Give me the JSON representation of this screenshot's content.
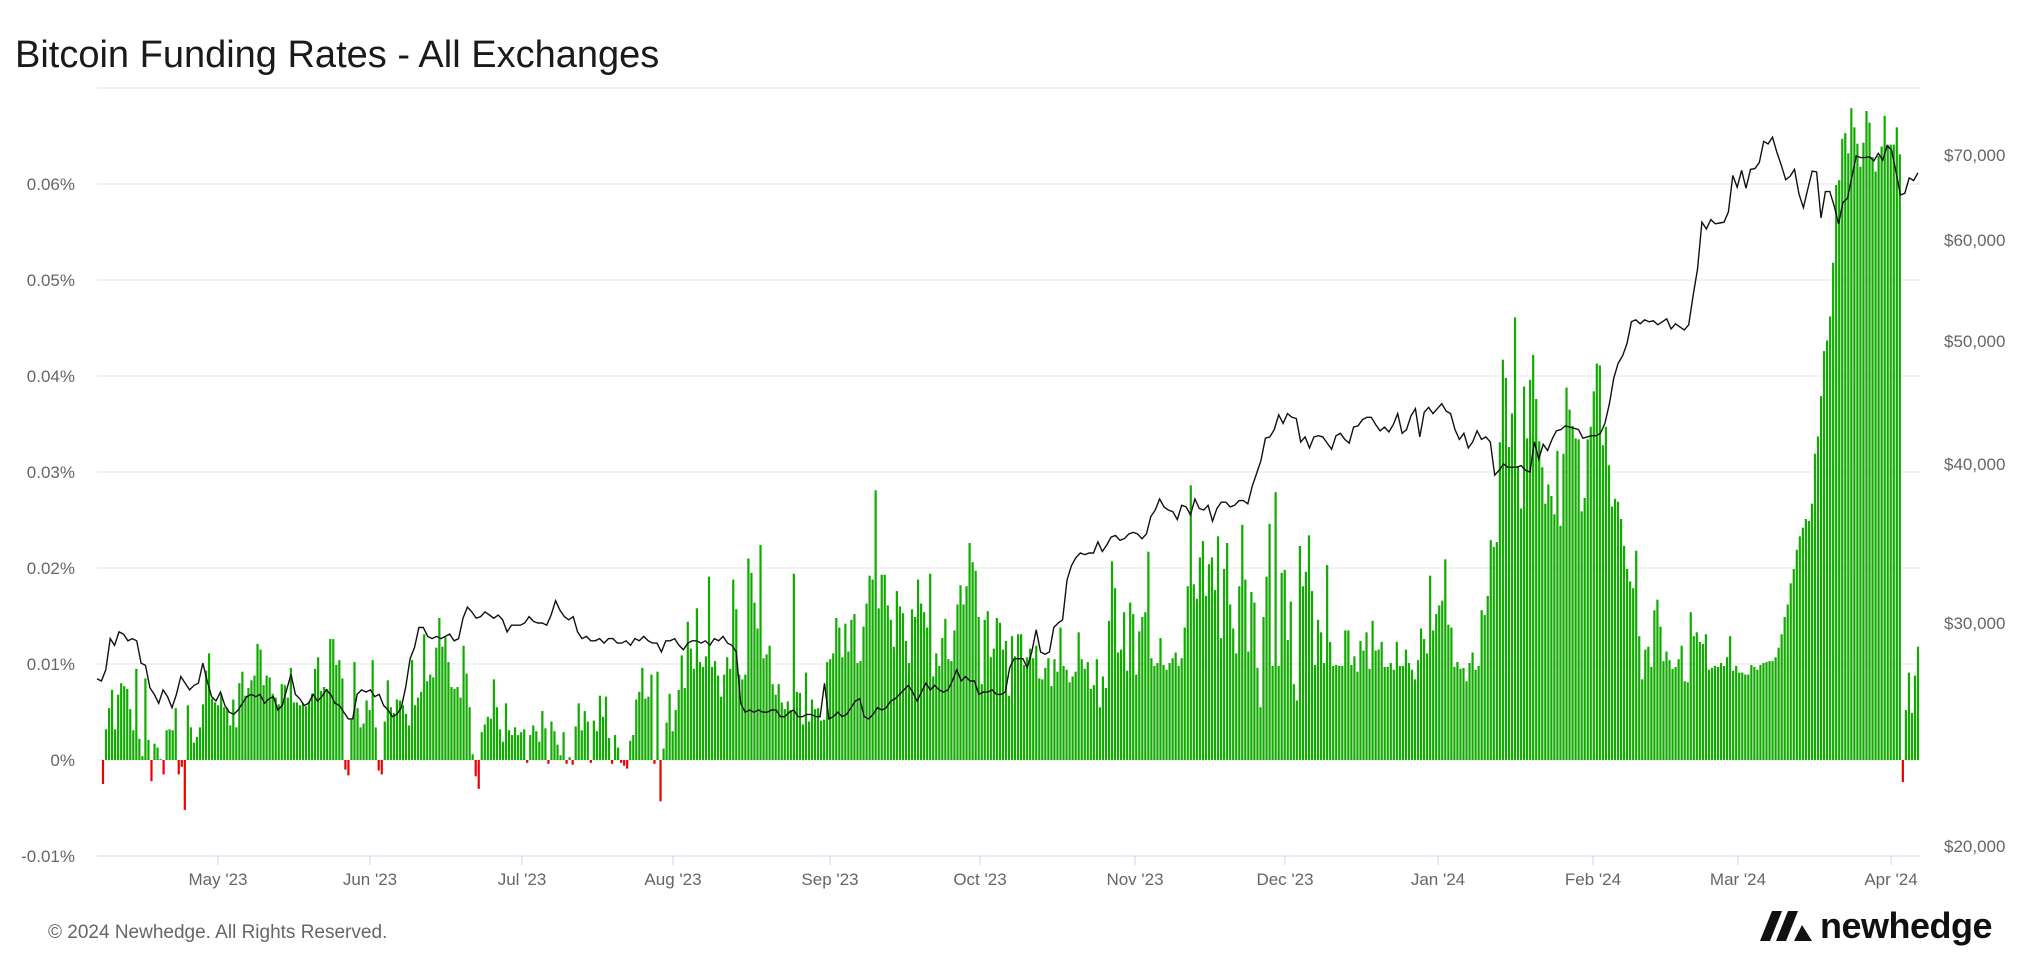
{
  "title": "Bitcoin Funding Rates - All Exchanges",
  "footer": "© 2024 Newhedge. All Rights Reserved.",
  "brand": {
    "name": "newhedge",
    "logo_icon": "newhedge-logo-icon"
  },
  "colors": {
    "positive": "#11aa00",
    "negative": "#ee0000",
    "price_line": "#111111",
    "grid": "#e6e6e6",
    "axis_text": "#666666"
  },
  "chart_data": {
    "type": "bar",
    "title": "Bitcoin Funding Rates - All Exchanges",
    "grid": true,
    "left_axis": {
      "ticks": [
        "-0.01%",
        "0%",
        "0.01%",
        "0.02%",
        "0.03%",
        "0.04%",
        "0.05%",
        "0.06%"
      ],
      "ylim": [
        -0.01,
        0.07
      ]
    },
    "right_axis": {
      "ticks": [
        "$20,000",
        "$30,000",
        "$40,000",
        "$50,000",
        "$60,000",
        "$70,000"
      ],
      "tick_values": [
        20000,
        30000,
        40000,
        50000,
        60000,
        70000
      ]
    },
    "x_axis": {
      "tick_labels": [
        "May '23",
        "Jun '23",
        "Jul '23",
        "Aug '23",
        "Sep '23",
        "Oct '23",
        "Nov '23",
        "Dec '23",
        "Jan '24",
        "Feb '24",
        "Mar '24",
        "Apr '24"
      ],
      "range_days": [
        0,
        365
      ]
    },
    "series": [
      {
        "type": "bar",
        "axis": "left",
        "unit": "%",
        "values": [
          -0.0025,
          0.0032,
          0.0054,
          0.0073,
          0.0032,
          0.0068,
          0.008,
          0.0077,
          0.0074,
          0.0053,
          0.0031,
          0.0095,
          0.0022,
          0.0004,
          0.0085,
          0.0021,
          -0.0022,
          0.0017,
          0.0013,
          0.0001,
          -0.0015,
          0.0031,
          0.0032,
          0.0031,
          0.0054,
          -0.0015,
          -0.0007,
          -0.0052,
          0.0057,
          0.0034,
          0.0018,
          0.0024,
          0.0034,
          0.0058,
          0.0093,
          0.0111,
          0.0064,
          0.006,
          0.0057,
          0.0068,
          0.0055,
          0.0054,
          0.0036,
          0.0063,
          0.0034,
          0.008,
          0.0092,
          0.0067,
          0.0075,
          0.0083,
          0.0088,
          0.0121,
          0.0115,
          0.0078,
          0.0088,
          0.0086,
          0.0069,
          0.0065,
          0.0058,
          0.0079,
          0.0078,
          0.0065,
          0.0096,
          0.006,
          0.006,
          0.0057,
          0.0059,
          0.0056,
          0.0061,
          0.0069,
          0.0095,
          0.0107,
          0.0072,
          0.0076,
          0.0074,
          0.0126,
          0.0126,
          0.0099,
          0.0104,
          0.0085,
          -0.001,
          -0.0016,
          0.0042,
          0.0102,
          0.0054,
          0.0034,
          0.0038,
          0.0062,
          0.0052,
          0.0104,
          0.0034,
          -0.0011,
          -0.0015,
          0.004,
          0.0083,
          0.0055,
          0.0049,
          0.0063,
          0.0062,
          0.0057,
          0.0048,
          0.0036,
          0.0104,
          0.0057,
          0.0065,
          0.0071,
          0.0131,
          0.0082,
          0.0089,
          0.0086,
          0.0117,
          0.0148,
          0.0118,
          0.0128,
          0.0102,
          0.0076,
          0.0074,
          0.0076,
          0.0065,
          0.0119,
          0.009,
          0.0055,
          0.0006,
          -0.0017,
          -0.003,
          0.0029,
          0.0037,
          0.0045,
          0.0043,
          0.0084,
          0.0055,
          0.0032,
          0.0019,
          0.0059,
          0.0031,
          0.0026,
          0.0034,
          0.0026,
          0.0029,
          0.0032,
          -0.0003,
          0.0026,
          0.0036,
          0.003,
          0.0019,
          0.0051,
          0.0033,
          -0.0004,
          0.004,
          0.003,
          0.0016,
          0.0005,
          0.0029,
          -0.0004,
          0.0003,
          -0.0005,
          0.0035,
          0.0059,
          0.0031,
          0.0051,
          0.004,
          -0.0003,
          0.0041,
          0.003,
          0.0067,
          0.0045,
          0.0066,
          0.0023,
          -0.0004,
          0.0026,
          0.0013,
          -0.0003,
          -0.0006,
          -0.0009,
          0.002,
          0.0026,
          0.0063,
          0.0071,
          0.0096,
          0.0064,
          0.0066,
          0.0089,
          -0.0004,
          0.0092,
          -0.0043,
          0.0012,
          0.0039,
          0.0069,
          0.003,
          0.0052,
          0.0073,
          0.0109,
          0.0075,
          0.0144,
          0.0116,
          0.0095,
          0.0158,
          0.0102,
          0.0097,
          0.0108,
          0.0191,
          0.0097,
          0.0103,
          0.0088,
          0.0066,
          0.0089,
          0.0107,
          0.0095,
          0.0188,
          0.0157,
          0.0089,
          0.0084,
          0.0089,
          0.021,
          0.0195,
          0.0164,
          0.0137,
          0.0224,
          0.0106,
          0.011,
          0.0119,
          0.0079,
          0.0068,
          0.0079,
          0.006,
          0.0053,
          0.0061,
          0.0052,
          0.0194,
          0.0071,
          0.007,
          0.0037,
          0.0091,
          0.004,
          0.0063,
          0.0053,
          0.0054,
          0.0041,
          0.0042,
          0.0102,
          0.0105,
          0.0111,
          0.0148,
          0.0138,
          0.0107,
          0.0142,
          0.0113,
          0.0146,
          0.0152,
          0.0101,
          0.0103,
          0.0139,
          0.0163,
          0.0192,
          0.0188,
          0.0281,
          0.0158,
          0.0193,
          0.0193,
          0.0161,
          0.0146,
          0.0118,
          0.0176,
          0.016,
          0.0153,
          0.0124,
          0.0101,
          0.0157,
          0.0149,
          0.0188,
          0.0163,
          0.0154,
          0.0138,
          0.0194,
          0.0087,
          0.0111,
          0.0098,
          0.0127,
          0.0147,
          0.0105,
          0.0103,
          0.0135,
          0.0162,
          0.0182,
          0.0162,
          0.0181,
          0.0226,
          0.0206,
          0.0197,
          0.0149,
          0.0079,
          0.0146,
          0.0155,
          0.0107,
          0.0116,
          0.0148,
          0.0143,
          0.0115,
          0.0124,
          0.0067,
          0.0129,
          0.0108,
          0.0131,
          0.0131,
          0.0099,
          0.0107,
          0.0116,
          0.0106,
          0.0119,
          0.0085,
          0.0084,
          0.0096,
          0.0106,
          0.0077,
          0.0105,
          0.0092,
          0.0138,
          0.0098,
          0.0094,
          0.0081,
          0.0087,
          0.0092,
          0.0133,
          0.0105,
          0.0095,
          0.0102,
          0.0074,
          0.0078,
          0.0105,
          0.0055,
          0.0087,
          0.0075,
          0.0145,
          0.0207,
          0.0179,
          0.0112,
          0.0115,
          0.0154,
          0.0093,
          0.0164,
          0.0152,
          0.0089,
          0.0134,
          0.0149,
          0.0154,
          0.0217,
          0.0106,
          0.0098,
          0.0101,
          0.0127,
          0.0099,
          0.0094,
          0.0101,
          0.0106,
          0.0112,
          0.0098,
          0.0106,
          0.0138,
          0.0181,
          0.0286,
          0.0183,
          0.0168,
          0.0211,
          0.0228,
          0.0171,
          0.0204,
          0.0211,
          0.0177,
          0.0233,
          0.0127,
          0.0199,
          0.0226,
          0.0162,
          0.0137,
          0.0111,
          0.0181,
          0.0245,
          0.0188,
          0.0113,
          0.0175,
          0.0164,
          0.0096,
          0.0055,
          0.0149,
          0.0191,
          0.0246,
          0.0098,
          0.0279,
          0.0098,
          0.0195,
          0.0198,
          0.0125,
          0.0165,
          0.0079,
          0.0062,
          0.0223,
          0.0181,
          0.0196,
          0.0234,
          0.0176,
          0.0099,
          0.0146,
          0.0133,
          0.0101,
          0.0203,
          0.0123,
          0.0098,
          0.0099,
          0.0098,
          0.0098,
          0.0135,
          0.0135,
          0.0099,
          0.0108,
          0.0092,
          0.0124,
          0.0114,
          0.0133,
          0.0095,
          0.0145,
          0.0114,
          0.0115,
          0.0123,
          0.0097,
          0.0097,
          0.0101,
          0.0094,
          0.0123,
          0.0098,
          0.0098,
          0.0115,
          0.0101,
          0.0094,
          0.0084,
          0.0104,
          0.0137,
          0.0126,
          0.0111,
          0.0192,
          0.0135,
          0.0152,
          0.0161,
          0.0166,
          0.0209,
          0.0141,
          0.0138,
          0.0097,
          0.0102,
          0.0095,
          0.0096,
          0.0082,
          0.0101,
          0.0112,
          0.0094,
          0.0098,
          0.0156,
          0.0151,
          0.0171,
          0.0229,
          0.0222,
          0.0227,
          0.0331,
          0.0417,
          0.0398,
          0.0326,
          0.0361,
          0.0461,
          0.0306,
          0.0262,
          0.0389,
          0.0335,
          0.0396,
          0.0422,
          0.0376,
          0.0332,
          0.0305,
          0.0267,
          0.0287,
          0.0275,
          0.0256,
          0.0322,
          0.0244,
          0.0319,
          0.0388,
          0.0365,
          0.0348,
          0.0335,
          0.0334,
          0.0259,
          0.0273,
          0.0334,
          0.0347,
          0.0384,
          0.0413,
          0.0411,
          0.0328,
          0.0347,
          0.0307,
          0.0264,
          0.0272,
          0.0269,
          0.0251,
          0.0223,
          0.0199,
          0.0186,
          0.0179,
          0.0218,
          0.0129,
          0.0084,
          0.0115,
          0.0118,
          0.0097,
          0.0156,
          0.0167,
          0.0139,
          0.0103,
          0.0113,
          0.0104,
          0.0095,
          0.0097,
          0.0105,
          0.0119,
          0.0082,
          0.0081,
          0.0154,
          0.0129,
          0.0133,
          0.0123,
          0.0121,
          0.0131,
          0.0094,
          0.0096,
          0.0098,
          0.0097,
          0.0101,
          0.0098,
          0.0107,
          0.0129,
          0.0093,
          0.0098,
          0.0091,
          0.0091,
          0.0089,
          0.0089,
          0.0099,
          0.0097,
          0.0094,
          0.0099,
          0.0101,
          0.0102,
          0.0103,
          0.0103,
          0.0107,
          0.0117,
          0.0131,
          0.0149,
          0.0162,
          0.0184,
          0.0199,
          0.0219,
          0.0233,
          0.0242,
          0.0251,
          0.0249,
          0.0267,
          0.0319,
          0.0337,
          0.0379,
          0.0426,
          0.0437,
          0.0462,
          0.0518,
          0.0599,
          0.0604,
          0.0647,
          0.0653,
          0.0632,
          0.0679,
          0.0659,
          0.0642,
          0.0618,
          0.0643,
          0.0676,
          0.0664,
          0.0628,
          0.0613,
          0.0629,
          0.0639,
          0.0671,
          0.0641,
          0.0641,
          0.0641,
          0.0659,
          0.0631,
          -0.0023,
          0.0052,
          0.0091,
          0.0049,
          0.0088,
          0.0118
        ],
        "bar_count_note": "daily average funding rate"
      },
      {
        "type": "line",
        "axis": "right",
        "unit": "USD",
        "values": [
          27500,
          27400,
          27900,
          29300,
          29000,
          29600,
          29500,
          29200,
          29300,
          29200,
          28200,
          28100,
          27100,
          26800,
          26400,
          27000,
          26700,
          26200,
          26800,
          27600,
          27300,
          27000,
          27200,
          27300,
          28200,
          27400,
          26700,
          26500,
          26900,
          26300,
          26000,
          25900,
          26100,
          26400,
          26700,
          26800,
          26700,
          26800,
          26400,
          26600,
          26700,
          26100,
          26300,
          27000,
          27700,
          26800,
          26600,
          26300,
          26400,
          26800,
          26500,
          26700,
          27000,
          26800,
          26400,
          26300,
          26000,
          25700,
          25700,
          26800,
          27000,
          26900,
          27000,
          26700,
          26800,
          26300,
          26100,
          25800,
          25900,
          26200,
          27100,
          28400,
          28900,
          29800,
          29800,
          29400,
          29300,
          29400,
          29300,
          29400,
          29500,
          29200,
          29300,
          30300,
          31000,
          30700,
          30300,
          30400,
          30700,
          30500,
          30300,
          30500,
          30200,
          29600,
          29900,
          29900,
          29900,
          30000,
          30400,
          30100,
          30000,
          30000,
          29900,
          30500,
          31400,
          30800,
          30400,
          30200,
          30400,
          29600,
          29300,
          29400,
          29200,
          29200,
          29300,
          29100,
          29300,
          29300,
          29100,
          29100,
          29200,
          29000,
          29300,
          29200,
          29400,
          29200,
          29100,
          29100,
          28700,
          29200,
          29200,
          29300,
          29000,
          28800,
          29100,
          29200,
          29200,
          29100,
          29200,
          29000,
          29300,
          29200,
          29400,
          29100,
          29000,
          28700,
          26400,
          26000,
          26100,
          26000,
          26100,
          26000,
          26000,
          26100,
          26100,
          25800,
          25800,
          26000,
          26100,
          25800,
          25800,
          25900,
          25900,
          25800,
          25800,
          27300,
          25700,
          25800,
          26000,
          25800,
          25900,
          26200,
          26500,
          26600,
          25800,
          25700,
          25900,
          26200,
          26100,
          26200,
          26500,
          26600,
          26800,
          27000,
          27200,
          26900,
          26500,
          26900,
          27300,
          27000,
          27200,
          27000,
          26900,
          27000,
          27400,
          27900,
          27400,
          27600,
          27400,
          27400,
          26800,
          26900,
          26900,
          27000,
          26800,
          26800,
          26900,
          28000,
          28400,
          28400,
          28400,
          28000,
          28700,
          29700,
          28700,
          28600,
          28700,
          29800,
          30000,
          30200,
          32700,
          33600,
          34100,
          34400,
          34300,
          34400,
          34400,
          35100,
          34500,
          34900,
          35400,
          35500,
          35200,
          35300,
          35600,
          35700,
          35600,
          35300,
          35600,
          36700,
          37100,
          37800,
          37300,
          37100,
          37000,
          36500,
          37400,
          37300,
          36800,
          37800,
          37200,
          37100,
          37400,
          36400,
          37200,
          37600,
          37600,
          37300,
          37400,
          37700,
          37700,
          37500,
          38600,
          39400,
          40300,
          42100,
          42200,
          42800,
          44000,
          43300,
          44100,
          43800,
          43700,
          41800,
          42200,
          41300,
          42200,
          42300,
          42200,
          41700,
          41200,
          42300,
          42500,
          42000,
          41700,
          43000,
          43100,
          43600,
          43800,
          43800,
          43200,
          42700,
          43000,
          42600,
          43200,
          44100,
          42500,
          42800,
          43900,
          44500,
          42200,
          44200,
          44600,
          44100,
          44500,
          44900,
          44300,
          44100,
          42800,
          42000,
          42500,
          41300,
          41800,
          42700,
          42000,
          42200,
          41800,
          39300,
          39600,
          40000,
          39800,
          39800,
          39800,
          39900,
          39600,
          39500,
          41800,
          40400,
          41600,
          41100,
          42000,
          42700,
          42800,
          43100,
          43000,
          42900,
          42800,
          42100,
          42200,
          42300,
          42300,
          42500,
          43300,
          44900,
          47000,
          48200,
          48800,
          49800,
          51900,
          52100,
          51700,
          52100,
          51900,
          52000,
          51600,
          51900,
          52200,
          51200,
          51700,
          51400,
          51100,
          51600,
          54500,
          57100,
          62100,
          61300,
          62400,
          61900,
          62000,
          62100,
          63300,
          67600,
          66200,
          68200,
          66100,
          68300,
          68400,
          69100,
          71600,
          71300,
          72100,
          70300,
          68800,
          67100,
          67500,
          68300,
          65400,
          63800,
          66000,
          68100,
          68000,
          62600,
          65700,
          65700,
          64000,
          61900,
          64400,
          64900,
          67400,
          69900,
          69700,
          69700,
          69800,
          69300,
          70200,
          69400,
          71100,
          70600,
          68000,
          65300,
          65500,
          67300,
          67000,
          67900
        ]
      }
    ]
  }
}
